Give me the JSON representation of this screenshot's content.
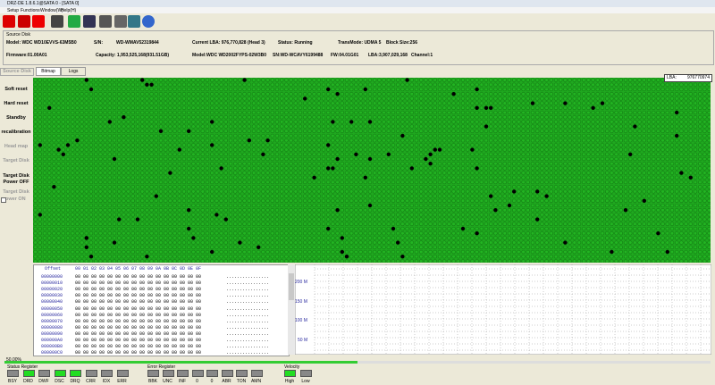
{
  "window_title": "DRZ-DE 1.8.6.1@SATA 0 - [SATA 0]",
  "menu": [
    "Setup",
    "Functions",
    "Window(W)",
    "Help(H)"
  ],
  "source_disk": {
    "label": "Source Disk",
    "row1": [
      "Model: WDC WD10EVVS-63M5B0",
      "S/N:",
      "WD-WMAV52319844",
      "Current LBA: 976,770,828 (Head 3)",
      "Status: Running",
      "TransMode: UDMA 5",
      "Block Size:256"
    ],
    "row2": [
      "Firmware:01.00A01",
      "Capacity: 1,953,525,168(931.51GB)",
      "Model:WDC WD2002FYPS-02W3B0",
      "SN:WD-WCAVY6199488",
      "FW:04.01G01",
      "LBA:3,907,029,168",
      "Channel:1"
    ]
  },
  "sidebar": [
    {
      "label": "Source Disk",
      "enabled": false
    },
    {
      "label": "Soft reset",
      "enabled": true
    },
    {
      "label": "Hard reset",
      "enabled": true
    },
    {
      "label": "Standby",
      "enabled": true
    },
    {
      "label": "recalibration",
      "enabled": true
    },
    {
      "label": "Head map",
      "enabled": false
    },
    {
      "label": "Target Disk",
      "enabled": false
    },
    {
      "label": "Target Disk Power OFF",
      "enabled": true
    },
    {
      "label": "Target Disk",
      "enabled": false
    },
    {
      "label": "ower ON",
      "enabled": false
    }
  ],
  "tabs": [
    "Bitmap",
    "Logs"
  ],
  "lba_tooltip": {
    "label": "LBA:",
    "value": "976770974"
  },
  "hex": {
    "offset_header": "Offset",
    "bytes_header": "00 01 02 03 04 05 06 07 08 09 0A 0B 0C 0D 0E 0F",
    "rows": [
      {
        "offset": "00000000",
        "bytes": "00 00 00 00 00 00 00 00 00 00 00 00 00 00 00 00",
        "ascii": "................"
      },
      {
        "offset": "00000010",
        "bytes": "00 00 00 00 00 00 00 00 00 00 00 00 00 00 00 00",
        "ascii": "................"
      },
      {
        "offset": "00000020",
        "bytes": "00 00 00 00 00 00 00 00 00 00 00 00 00 00 00 00",
        "ascii": "................"
      },
      {
        "offset": "00000030",
        "bytes": "00 00 00 00 00 00 00 00 00 00 00 00 00 00 00 00",
        "ascii": "................"
      },
      {
        "offset": "00000040",
        "bytes": "00 00 00 00 00 00 00 00 00 00 00 00 00 00 00 00",
        "ascii": "................"
      },
      {
        "offset": "00000050",
        "bytes": "00 00 00 00 00 00 00 00 00 00 00 00 00 00 00 00",
        "ascii": "................"
      },
      {
        "offset": "00000060",
        "bytes": "00 00 00 00 00 00 00 00 00 00 00 00 00 00 00 00",
        "ascii": "................"
      },
      {
        "offset": "00000070",
        "bytes": "00 00 00 00 00 00 00 00 00 00 00 00 00 00 00 00",
        "ascii": "................"
      },
      {
        "offset": "00000080",
        "bytes": "00 00 00 00 00 00 00 00 00 00 00 00 00 00 00 00",
        "ascii": "................"
      },
      {
        "offset": "00000090",
        "bytes": "00 00 00 00 00 00 00 00 00 00 00 00 00 00 00 00",
        "ascii": "................"
      },
      {
        "offset": "000000A0",
        "bytes": "00 00 00 00 00 00 00 00 00 00 00 00 00 00 00 00",
        "ascii": "................"
      },
      {
        "offset": "000000B0",
        "bytes": "00 00 00 00 00 00 00 00 00 00 00 00 00 00 00 00",
        "ascii": "................"
      },
      {
        "offset": "000000C0",
        "bytes": "00 00 00 00 00 00 00 00 00 00 00 00 00 00 00 00",
        "ascii": "................"
      }
    ]
  },
  "speed_axis": [
    "200 M",
    "150 M",
    "100 M",
    "50 M"
  ],
  "progress": {
    "value": 50,
    "label": "50.00%"
  },
  "status_register": {
    "label": "Status Register",
    "bits": [
      {
        "name": "BSY",
        "on": false
      },
      {
        "name": "DRD",
        "on": true
      },
      {
        "name": "DWF",
        "on": false
      },
      {
        "name": "DSC",
        "on": true
      },
      {
        "name": "DRQ",
        "on": true
      },
      {
        "name": "CRR",
        "on": false
      },
      {
        "name": "IDX",
        "on": false
      },
      {
        "name": "ERR",
        "on": false
      }
    ]
  },
  "error_register": {
    "label": "Error Register",
    "bits": [
      {
        "name": "BBK",
        "on": false
      },
      {
        "name": "UNC",
        "on": false
      },
      {
        "name": "INF",
        "on": false
      },
      {
        "name": "0",
        "on": false
      },
      {
        "name": "0",
        "on": false
      },
      {
        "name": "ABR",
        "on": false
      },
      {
        "name": "TON",
        "on": false
      },
      {
        "name": "AMN",
        "on": false
      }
    ]
  },
  "velocity": {
    "label": "Velocity",
    "bits": [
      {
        "name": "High",
        "on": true
      },
      {
        "name": "Low",
        "on": false
      }
    ]
  }
}
